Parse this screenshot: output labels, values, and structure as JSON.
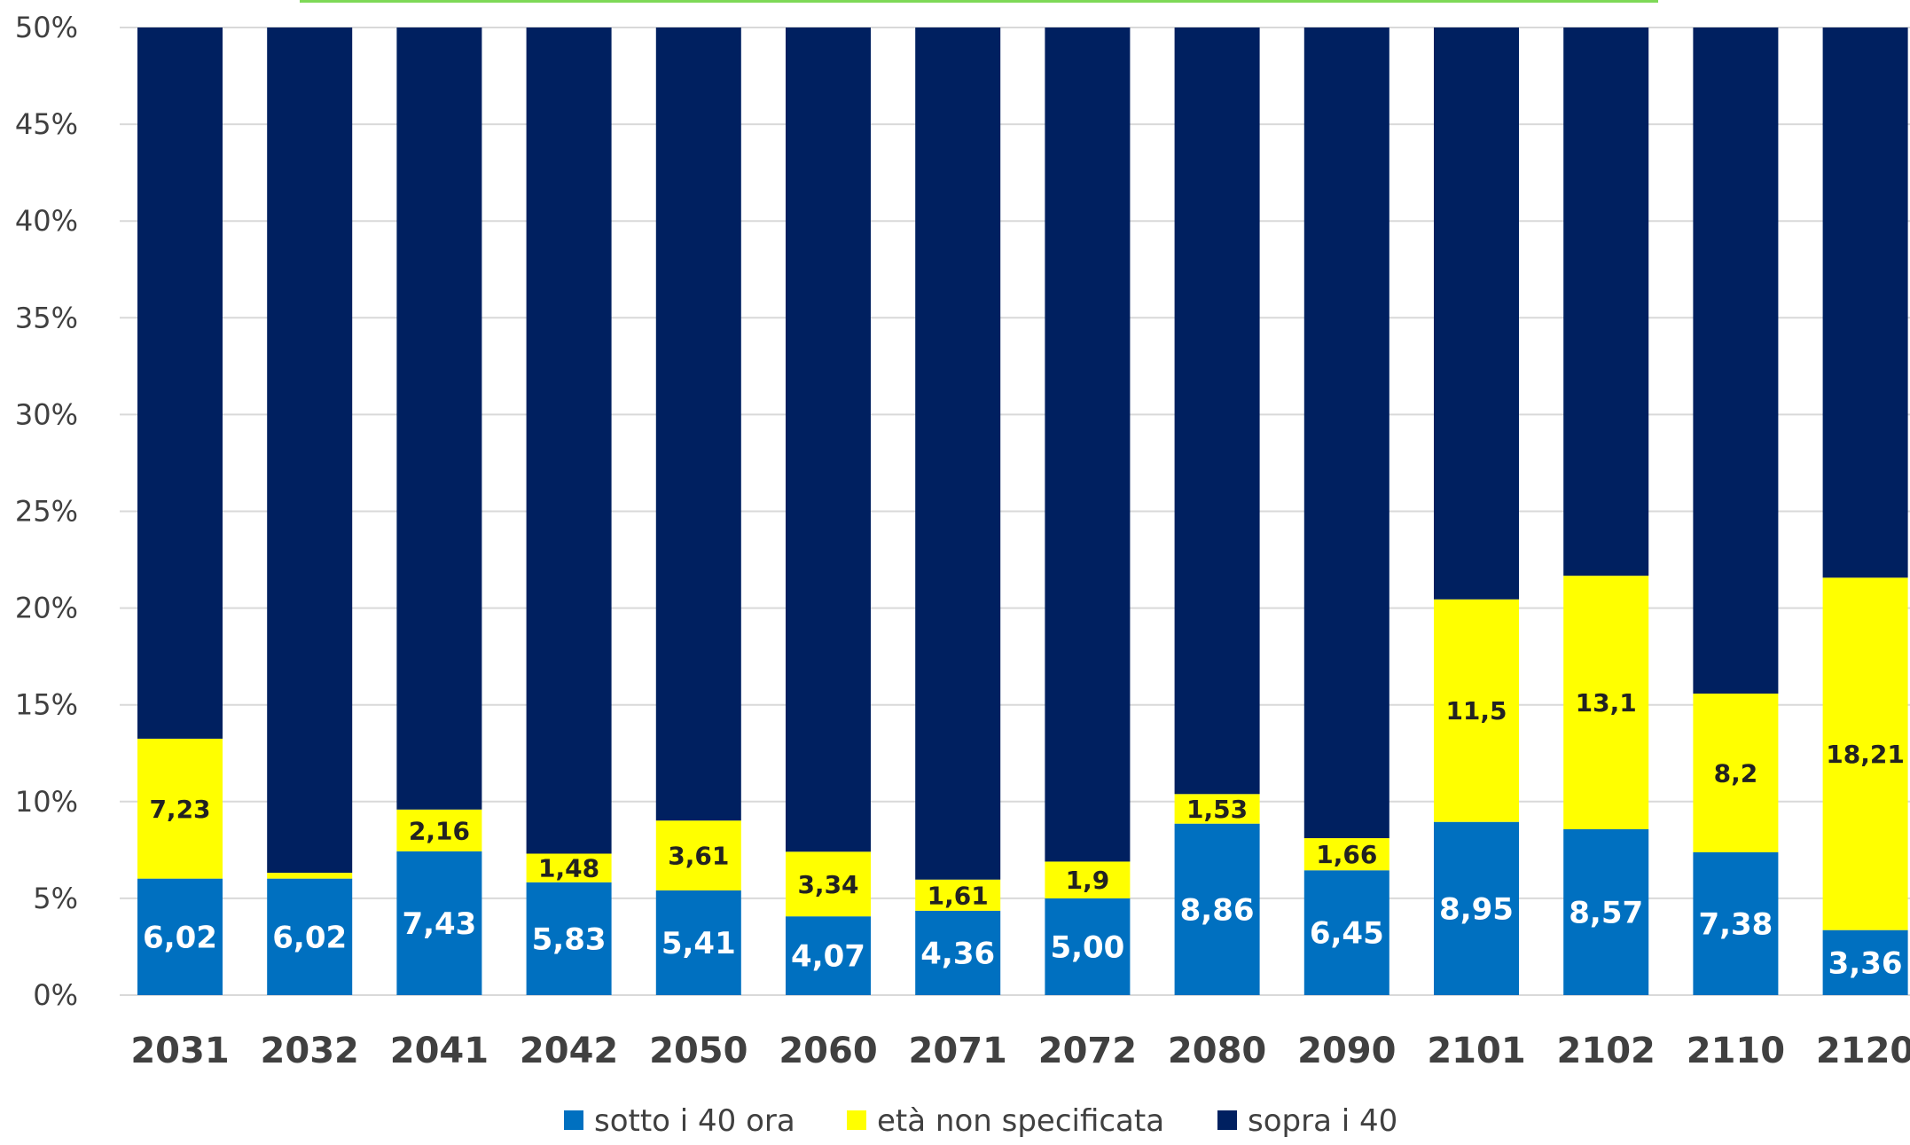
{
  "chart_data": {
    "type": "bar",
    "stacked": true,
    "categories": [
      "2031",
      "2032",
      "2041",
      "2042",
      "2050",
      "2060",
      "2071",
      "2072",
      "2080",
      "2090",
      "2101",
      "2102",
      "2110",
      "2120"
    ],
    "series": [
      {
        "name": "sotto i 40 ora",
        "color": "#0070C0",
        "values": [
          6.02,
          6.02,
          7.43,
          5.83,
          5.41,
          4.07,
          4.36,
          5.0,
          8.86,
          6.45,
          8.95,
          8.57,
          7.38,
          3.36
        ],
        "labels": [
          "6,02",
          "6,02",
          "7,43",
          "5,83",
          "5,41",
          "4,07",
          "4,36",
          "5,00",
          "8,86",
          "6,45",
          "8,95",
          "8,57",
          "7,38",
          "3,36"
        ]
      },
      {
        "name": "età non specificata",
        "color": "#FFFF00",
        "values": [
          7.23,
          0.3,
          2.16,
          1.48,
          3.61,
          3.34,
          1.61,
          1.9,
          1.53,
          1.66,
          11.5,
          13.1,
          8.2,
          18.21
        ],
        "labels": [
          "7,23",
          "",
          "2,16",
          "1,48",
          "3,61",
          "3,34",
          "1,61",
          "1,9",
          "1,53",
          "1,66",
          "11,5",
          "13,1",
          "8,2",
          "18,21"
        ]
      },
      {
        "name": "sopra i 40",
        "color": "#002060",
        "values": [
          36.75,
          43.68,
          40.41,
          42.69,
          40.98,
          42.59,
          44.03,
          43.1,
          39.61,
          41.89,
          29.55,
          28.33,
          34.42,
          28.43
        ],
        "labels": [
          "",
          "",
          "",
          "",
          "",
          "",
          "",
          "",
          "",
          "",
          "",
          "",
          "",
          ""
        ]
      }
    ],
    "yaxis": {
      "min": 0,
      "max": 50,
      "step": 5,
      "ticks": [
        "0%",
        "5%",
        "10%",
        "15%",
        "20%",
        "25%",
        "30%",
        "35%",
        "40%",
        "45%",
        "50%"
      ]
    },
    "grid": true,
    "legend_position": "bottom",
    "title": "",
    "xlabel": "",
    "ylabel": ""
  },
  "colors": {
    "grid": "#d9d9d9",
    "top_border": "#7ed957"
  }
}
